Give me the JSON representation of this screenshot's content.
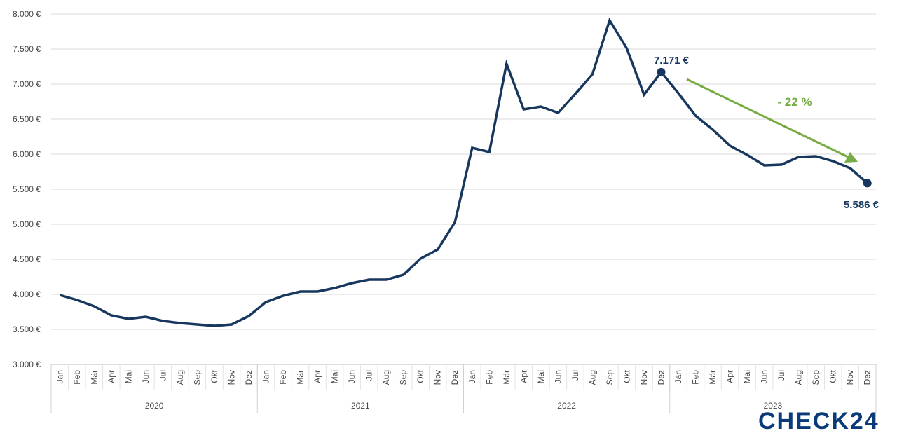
{
  "chart_data": {
    "type": "line",
    "title": "",
    "xlabel": "",
    "ylabel": "",
    "ylim": [
      3000,
      8000
    ],
    "yticks": [
      3000,
      3500,
      4000,
      4500,
      5000,
      5500,
      6000,
      6500,
      7000,
      7500,
      8000
    ],
    "ytick_labels": [
      "3.000 €",
      "3.500 €",
      "4.000 €",
      "4.500 €",
      "5.000 €",
      "5.500 €",
      "6.000 €",
      "6.500 €",
      "7.000 €",
      "7.500 €",
      "8.000 €"
    ],
    "grid": true,
    "months": [
      "Jan",
      "Feb",
      "Mär",
      "Apr",
      "Mai",
      "Jun",
      "Jul",
      "Aug",
      "Sep",
      "Okt",
      "Nov",
      "Dez"
    ],
    "years": [
      "2020",
      "2021",
      "2022",
      "2023"
    ],
    "series": [
      {
        "color": "#17375e",
        "values": [
          3990,
          3920,
          3830,
          3700,
          3650,
          3680,
          3620,
          3590,
          3570,
          3550,
          3570,
          3690,
          3890,
          3980,
          4040,
          4040,
          4090,
          4160,
          4210,
          4210,
          4280,
          4510,
          4640,
          5030,
          6090,
          6030,
          7290,
          6640,
          6680,
          6590,
          6860,
          7140,
          7910,
          7510,
          6850,
          7171,
          6870,
          6550,
          6350,
          6120,
          5990,
          5840,
          5850,
          5960,
          5970,
          5900,
          5800,
          5586
        ]
      }
    ],
    "annotations": [
      {
        "label": "7.171 €",
        "year": "2022",
        "month": "Dez",
        "value": 7171,
        "color": "#17375e"
      },
      {
        "label": "5.586 €",
        "year": "2023",
        "month": "Dez",
        "value": 5586,
        "color": "#17375e"
      },
      {
        "label": "- 22 %",
        "type": "arrow",
        "color": "#77ab43"
      }
    ]
  },
  "logo": {
    "text": "CHECK24",
    "color": "#0a3a7a"
  }
}
